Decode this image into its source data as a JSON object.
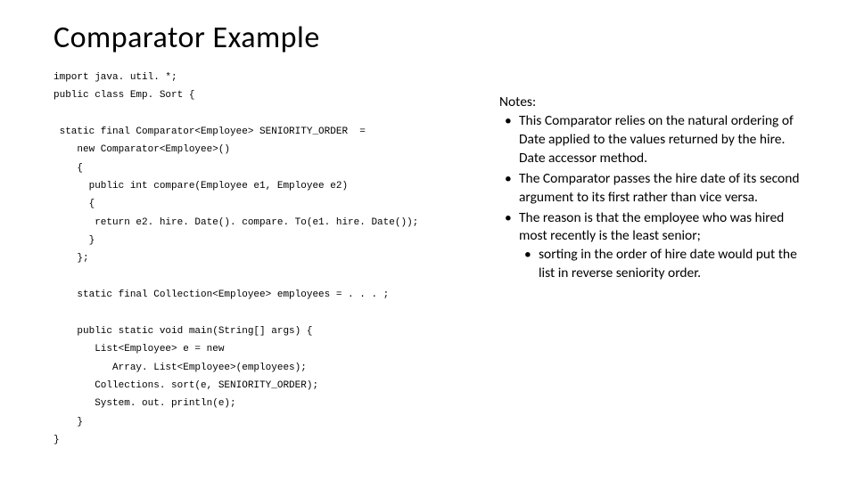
{
  "title": "Comparator Example",
  "code": {
    "lines": [
      "import java. util. *;",
      "public class Emp. Sort {",
      "",
      " static final Comparator<Employee> SENIORITY_ORDER  =",
      "    new Comparator<Employee>()",
      "    {",
      "      public int compare(Employee e1, Employee e2)",
      "      {",
      "       return e2. hire. Date(). compare. To(e1. hire. Date());",
      "      }",
      "    };",
      "",
      "    static final Collection<Employee> employees = . . . ;",
      "",
      "    public static void main(String[] args) {",
      "       List<Employee> e = new",
      "          Array. List<Employee>(employees);",
      "       Collections. sort(e, SENIORITY_ORDER);",
      "       System. out. println(e);",
      "    }",
      "}"
    ]
  },
  "notes": {
    "heading": "Notes:",
    "items": [
      "This Comparator relies on the natural ordering of Date applied to the values returned by the hire. Date accessor method.",
      "The Comparator passes the hire date of its second argument to its first rather than vice versa.",
      "The reason is that the employee who was hired most recently is the least senior;"
    ],
    "subitem": "sorting in the order of hire date would put the list in reverse seniority order."
  },
  "style": {
    "title_fontsize": 34,
    "code_fontsize": 11,
    "notes_fontsize": 15.5,
    "background_color": "#ffffff",
    "text_color": "#000000",
    "code_font": "Courier New",
    "body_font": "Calibri"
  }
}
